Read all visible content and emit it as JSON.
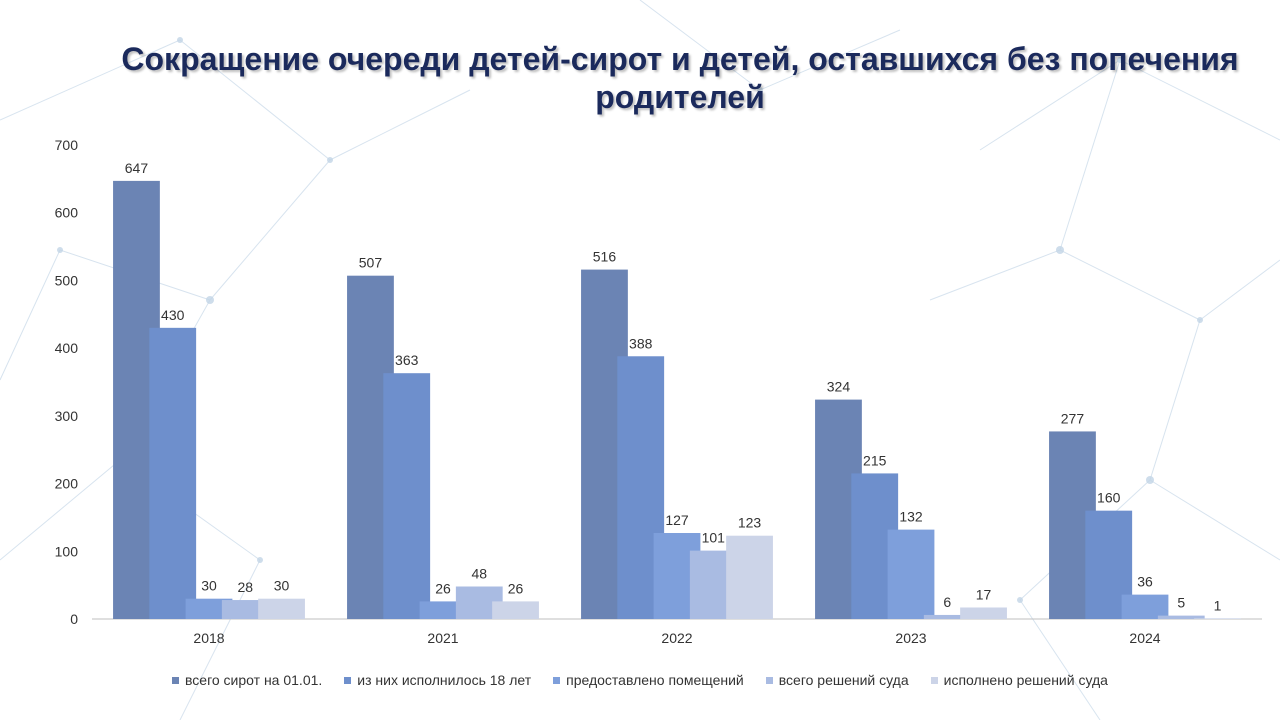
{
  "title": "Сокращение очереди детей-сирот и детей, оставшихся без попечения родителей",
  "chart_data": {
    "type": "bar",
    "title": "Сокращение очереди детей-сирот и детей, оставшихся без попечения родителей",
    "categories": [
      "2018",
      "2021",
      "2022",
      "2023",
      "2024"
    ],
    "ylim": [
      0,
      700
    ],
    "yticks": [
      0,
      100,
      200,
      300,
      400,
      500,
      600,
      700
    ],
    "grid": false,
    "legend_position": "bottom",
    "series": [
      {
        "name": "всего сирот на 01.01.",
        "values": [
          647,
          507,
          516,
          324,
          277
        ],
        "color": "#6b84b4"
      },
      {
        "name": "из них исполнилось 18 лет",
        "values": [
          430,
          363,
          388,
          215,
          160
        ],
        "color": "#6e8fcc"
      },
      {
        "name": "предоставлено помещений",
        "values": [
          30,
          26,
          127,
          132,
          36
        ],
        "color": "#7e9fdb"
      },
      {
        "name": "всего решений суда",
        "values": [
          28,
          48,
          101,
          6,
          5
        ],
        "color": "#a9bbe2"
      },
      {
        "name": "исполнено решений суда",
        "values": [
          30,
          26,
          123,
          17,
          1
        ],
        "color": "#ccd4e8"
      }
    ]
  }
}
